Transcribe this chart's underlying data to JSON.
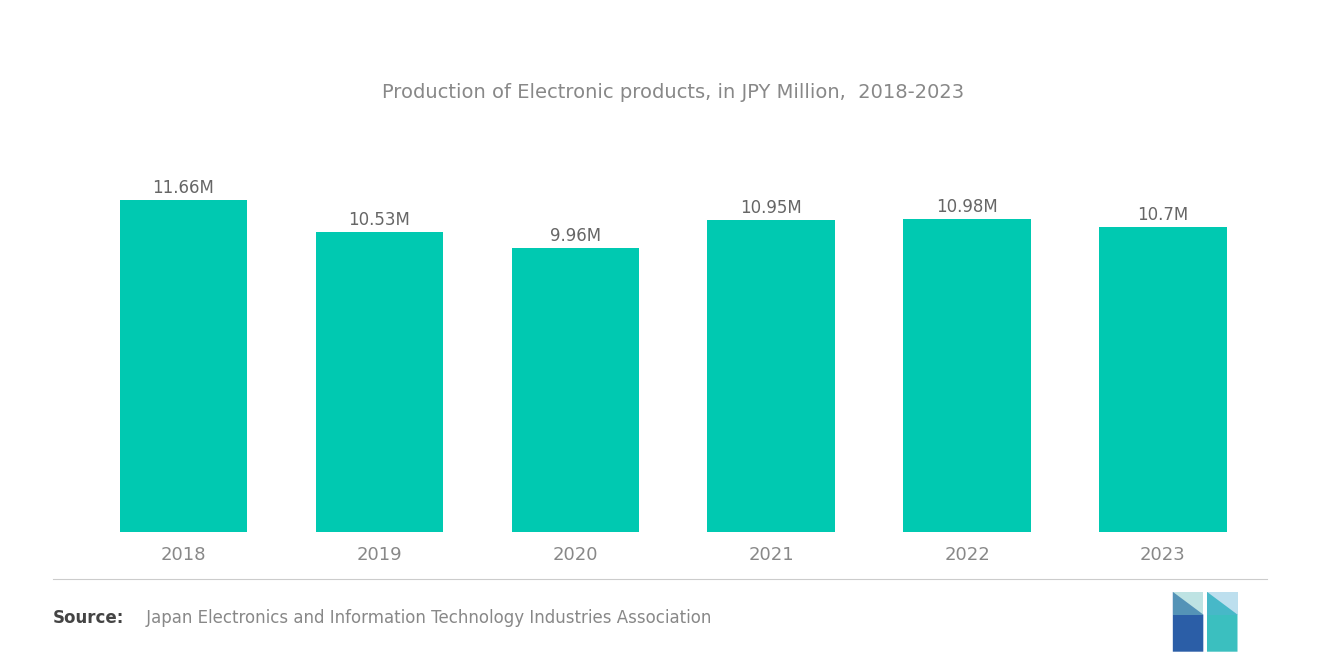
{
  "title": "Production of Electronic products, in JPY Million,  2018-2023",
  "categories": [
    "2018",
    "2019",
    "2020",
    "2021",
    "2022",
    "2023"
  ],
  "values": [
    11.66,
    10.53,
    9.96,
    10.95,
    10.98,
    10.7
  ],
  "labels": [
    "11.66M",
    "10.53M",
    "9.96M",
    "10.95M",
    "10.98M",
    "10.7M"
  ],
  "bar_color": "#00C9B1",
  "background_color": "#FFFFFF",
  "title_color": "#888888",
  "label_color": "#666666",
  "xtick_color": "#888888",
  "ylim_min": 0,
  "ylim_max": 14,
  "title_fontsize": 14,
  "label_fontsize": 12,
  "xtick_fontsize": 13,
  "source_fontsize": 12,
  "bar_width": 0.65,
  "logo_navy": "#2B5EA7",
  "logo_teal": "#3BBFBF"
}
